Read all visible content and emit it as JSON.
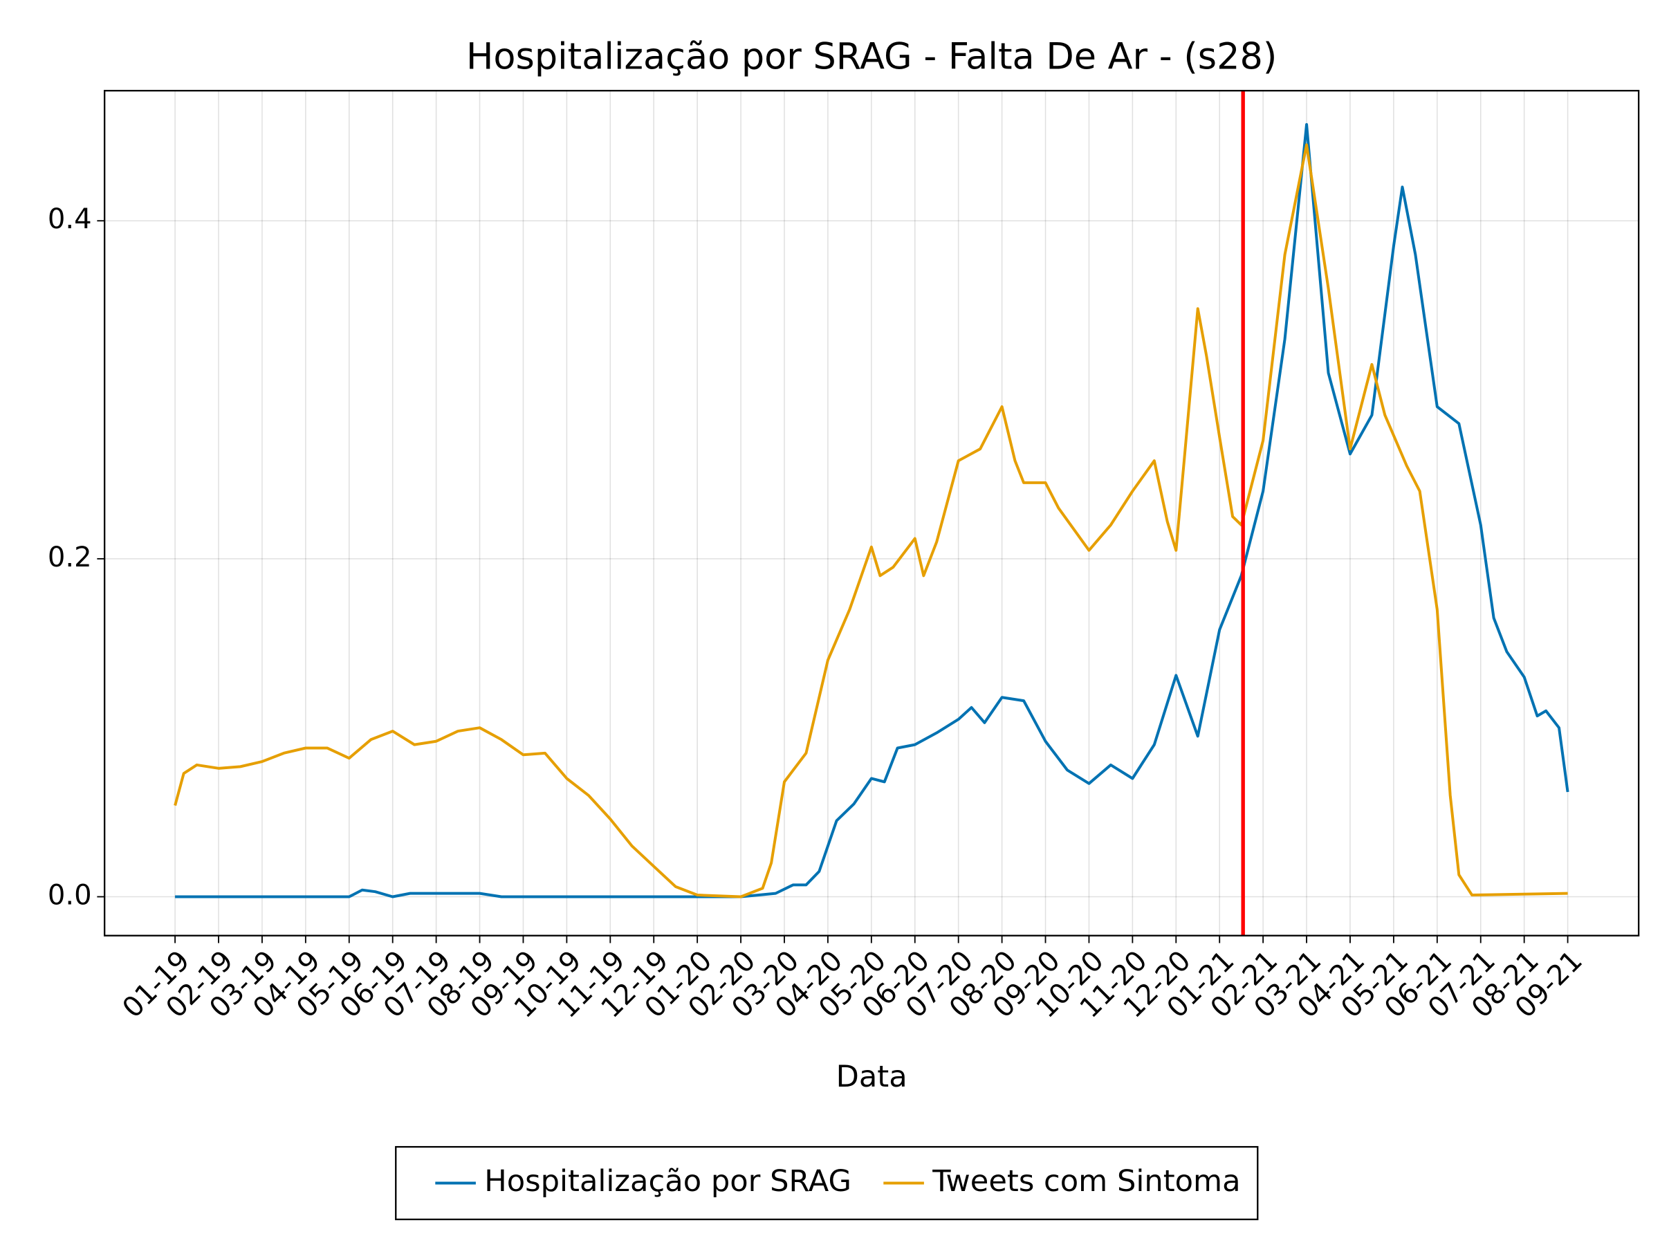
{
  "chart_data": {
    "type": "line",
    "title": "Hospitalização por SRAG - Falta De Ar - (s28)",
    "xlabel": "Data",
    "xlim": [
      -1.62,
      33.63
    ],
    "ylim": [
      -0.023,
      0.477
    ],
    "yticks": [
      {
        "value": 0,
        "label": "0.0"
      },
      0.2,
      0.4
    ],
    "xticks": [
      {
        "value": 0,
        "label": "01-19"
      },
      {
        "value": 1,
        "label": "02-19"
      },
      {
        "value": 2,
        "label": "03-19"
      },
      {
        "value": 3,
        "label": "04-19"
      },
      {
        "value": 4,
        "label": "05-19"
      },
      {
        "value": 5,
        "label": "06-19"
      },
      {
        "value": 6,
        "label": "07-19"
      },
      {
        "value": 7,
        "label": "08-19"
      },
      {
        "value": 8,
        "label": "09-19"
      },
      {
        "value": 9,
        "label": "10-19"
      },
      {
        "value": 10,
        "label": "11-19"
      },
      {
        "value": 11,
        "label": "12-19"
      },
      {
        "value": 12,
        "label": "01-20"
      },
      {
        "value": 13,
        "label": "02-20"
      },
      {
        "value": 14,
        "label": "03-20"
      },
      {
        "value": 15,
        "label": "04-20"
      },
      {
        "value": 16,
        "label": "05-20"
      },
      {
        "value": 17,
        "label": "06-20"
      },
      {
        "value": 18,
        "label": "07-20"
      },
      {
        "value": 19,
        "label": "08-20"
      },
      {
        "value": 20,
        "label": "09-20"
      },
      {
        "value": 21,
        "label": "10-20"
      },
      {
        "value": 22,
        "label": "11-20"
      },
      {
        "value": 23,
        "label": "12-20"
      },
      {
        "value": 24,
        "label": "01-21"
      },
      {
        "value": 25,
        "label": "02-21"
      },
      {
        "value": 26,
        "label": "03-21"
      },
      {
        "value": 27,
        "label": "04-21"
      },
      {
        "value": 28,
        "label": "05-21"
      },
      {
        "value": 29,
        "label": "06-21"
      },
      {
        "value": 30,
        "label": "07-21"
      },
      {
        "value": 31,
        "label": "08-21"
      },
      {
        "value": 32,
        "label": "09-21"
      }
    ],
    "grid": true,
    "vline": {
      "value": 24.54,
      "color": "#ff0000"
    },
    "legend": "bottom",
    "series": [
      {
        "name": "Hospitalização por SRAG",
        "color": "#0072b2",
        "x": [
          0,
          4,
          4.3,
          4.6,
          5,
          5.4,
          6,
          6.5,
          7,
          7.5,
          8,
          13,
          13.8,
          14.2,
          14.5,
          14.8,
          15.2,
          15.6,
          16,
          16.3,
          16.6,
          17,
          17.5,
          18,
          18.3,
          18.6,
          19,
          19.5,
          20,
          20.5,
          21,
          21.5,
          22,
          22.5,
          23,
          23.5,
          24,
          24.5,
          25,
          25.5,
          26,
          26.5,
          27,
          27.5,
          28,
          28.2,
          28.5,
          29,
          29.5,
          30,
          30.3,
          30.6,
          31,
          31.3,
          31.5,
          31.8,
          32
        ],
        "values": [
          0,
          0,
          0.004,
          0.003,
          0,
          0.002,
          0.002,
          0.002,
          0.002,
          0,
          0,
          0,
          0.002,
          0.007,
          0.007,
          0.015,
          0.045,
          0.055,
          0.07,
          0.068,
          0.088,
          0.09,
          0.097,
          0.105,
          0.112,
          0.103,
          0.118,
          0.116,
          0.092,
          0.075,
          0.067,
          0.078,
          0.07,
          0.09,
          0.131,
          0.095,
          0.158,
          0.19,
          0.24,
          0.33,
          0.457,
          0.31,
          0.262,
          0.285,
          0.385,
          0.42,
          0.38,
          0.29,
          0.28,
          0.22,
          0.165,
          0.145,
          0.13,
          0.107,
          0.11,
          0.1,
          0.062
        ]
      },
      {
        "name": "Tweets com Sintoma",
        "color": "#e69f00",
        "x": [
          0,
          0.2,
          0.5,
          1,
          1.5,
          2,
          2.5,
          3,
          3.5,
          4,
          4.5,
          5,
          5.5,
          6,
          6.5,
          7,
          7.5,
          8,
          8.5,
          9,
          9.5,
          10,
          10.5,
          11,
          11.5,
          12,
          13,
          13.5,
          13.7,
          14,
          14.5,
          15,
          15.5,
          16,
          16.2,
          16.5,
          17,
          17.2,
          17.5,
          18,
          18.5,
          19,
          19.3,
          19.5,
          20,
          20.3,
          21,
          21.5,
          22,
          22.5,
          22.8,
          23,
          23.2,
          23.5,
          23.7,
          24,
          24.3,
          24.5,
          25,
          25.5,
          26,
          26.5,
          27,
          27.5,
          27.8,
          28.3,
          28.6,
          29,
          29.3,
          29.5,
          29.8,
          32
        ],
        "values": [
          0.054,
          0.073,
          0.078,
          0.076,
          0.077,
          0.08,
          0.085,
          0.088,
          0.088,
          0.082,
          0.093,
          0.098,
          0.09,
          0.092,
          0.098,
          0.1,
          0.093,
          0.084,
          0.085,
          0.07,
          0.06,
          0.046,
          0.03,
          0.018,
          0.006,
          0.001,
          0,
          0.005,
          0.02,
          0.068,
          0.085,
          0.14,
          0.17,
          0.207,
          0.19,
          0.195,
          0.212,
          0.19,
          0.21,
          0.258,
          0.265,
          0.29,
          0.258,
          0.245,
          0.245,
          0.23,
          0.205,
          0.22,
          0.24,
          0.258,
          0.222,
          0.205,
          0.262,
          0.348,
          0.32,
          0.272,
          0.225,
          0.22,
          0.27,
          0.38,
          0.445,
          0.36,
          0.265,
          0.315,
          0.285,
          0.255,
          0.24,
          0.17,
          0.06,
          0.013,
          0.001,
          0.002
        ]
      }
    ]
  }
}
